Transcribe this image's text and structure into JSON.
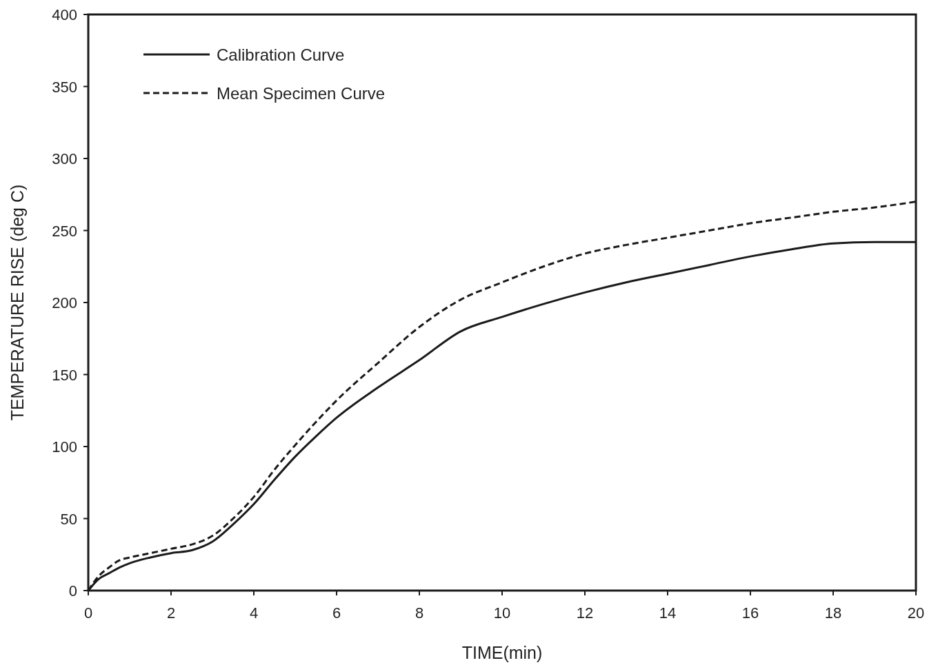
{
  "chart_data": {
    "type": "line",
    "xlabel": "TIME(min)",
    "ylabel": "TEMPERATURE  RISE  (deg C)",
    "xlim": [
      0,
      20
    ],
    "ylim": [
      0,
      400
    ],
    "xticks": [
      0,
      2,
      4,
      6,
      8,
      10,
      12,
      14,
      16,
      18,
      20
    ],
    "yticks": [
      0,
      50,
      100,
      150,
      200,
      250,
      300,
      350,
      400
    ],
    "x": [
      0,
      0.25,
      0.5,
      0.75,
      1,
      1.5,
      2,
      2.5,
      2.8,
      3,
      3.5,
      4,
      4.5,
      5,
      5.5,
      6,
      7,
      8,
      9,
      10,
      11,
      12,
      13,
      14,
      15,
      16,
      17,
      18,
      19,
      20
    ],
    "legend": "top left",
    "grid": false,
    "marker": "none",
    "series": [
      {
        "name": "Calibration Curve",
        "color": "#1a1a1a",
        "line_style": "solid",
        "values": [
          0,
          8,
          12,
          16,
          19,
          23,
          26,
          28,
          31,
          34,
          46,
          60,
          77,
          93,
          107,
          120,
          141,
          160,
          180,
          190,
          199,
          207,
          214,
          220,
          226,
          232,
          237,
          241,
          242,
          242
        ]
      },
      {
        "name": "Mean Specimen Curve",
        "color": "#1a1a1a",
        "line_style": "dashed",
        "values": [
          0,
          10,
          16,
          21,
          23,
          26,
          29,
          32,
          35,
          38,
          50,
          65,
          84,
          101,
          117,
          132,
          158,
          183,
          202,
          214,
          225,
          234,
          240,
          245,
          250,
          255,
          259,
          263,
          266,
          270
        ]
      }
    ]
  }
}
